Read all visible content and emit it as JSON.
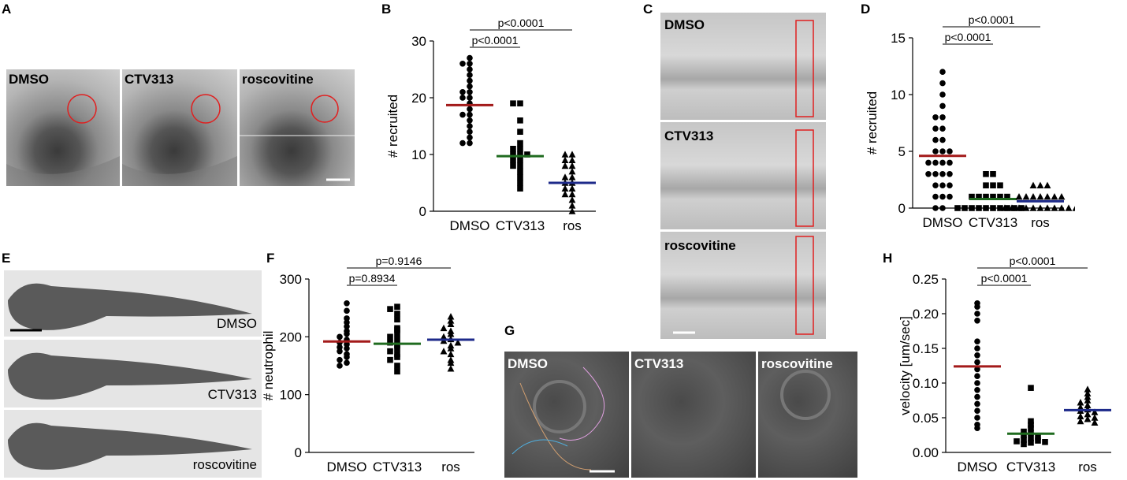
{
  "panels": {
    "a": "A",
    "b": "B",
    "c": "C",
    "d": "D",
    "e": "E",
    "f": "F",
    "g": "G",
    "h": "H"
  },
  "panel_a": {
    "labels": [
      "DMSO",
      "CTV313",
      "roscovitine"
    ]
  },
  "panel_c": {
    "labels": [
      "DMSO",
      "CTV313",
      "roscovitine"
    ]
  },
  "panel_e": {
    "labels": [
      "DMSO",
      "CTV313",
      "roscovitine"
    ]
  },
  "panel_g": {
    "labels": [
      "DMSO",
      "CTV313",
      "roscovitine"
    ]
  },
  "colors": {
    "dmso": "#a31a1a",
    "ctv313": "#1f6b1f",
    "ros": "#1d2a8a"
  },
  "chart_data": [
    {
      "id": "B",
      "type": "scatter",
      "categories": [
        "DMSO",
        "CTV313",
        "ros"
      ],
      "ylabel": "# recruited",
      "ylim": [
        0,
        30
      ],
      "yticks": [
        0,
        10,
        20,
        30
      ],
      "markers": [
        "circle",
        "square",
        "triangle"
      ],
      "means": [
        18.7,
        9.7,
        5.0
      ],
      "series": [
        {
          "values": [
            27,
            26,
            26,
            25,
            24,
            23,
            22,
            21,
            21,
            20,
            20,
            19,
            18,
            17,
            17,
            16,
            15,
            14,
            13,
            12,
            12
          ]
        },
        {
          "values": [
            19,
            19,
            16,
            14,
            12,
            11,
            11,
            10,
            10,
            10,
            9,
            9,
            8,
            8,
            7,
            6,
            5,
            4
          ]
        },
        {
          "values": [
            10,
            10,
            9,
            9,
            8,
            8,
            7,
            6,
            6,
            5,
            5,
            4,
            4,
            3,
            3,
            2,
            1,
            0
          ]
        }
      ],
      "comparisons": [
        {
          "groups": [
            0,
            1
          ],
          "label": "p<0.0001"
        },
        {
          "groups": [
            0,
            2
          ],
          "label": "p<0.0001"
        }
      ]
    },
    {
      "id": "D",
      "type": "scatter",
      "categories": [
        "DMSO",
        "CTV313",
        "ros"
      ],
      "ylabel": "# recruited",
      "ylim": [
        0,
        15
      ],
      "yticks": [
        0,
        5,
        10,
        15
      ],
      "markers": [
        "circle",
        "square",
        "triangle"
      ],
      "means": [
        4.6,
        0.8,
        0.6
      ],
      "series": [
        {
          "values": [
            12,
            11,
            10,
            9,
            8,
            8,
            7,
            7,
            6,
            6,
            5,
            5,
            5,
            4,
            4,
            4,
            4,
            3,
            3,
            3,
            3,
            2,
            2,
            2,
            1,
            1,
            1,
            0,
            0
          ]
        },
        {
          "values": [
            3,
            3,
            2,
            2,
            2,
            1,
            1,
            1,
            1,
            1,
            1,
            0,
            0,
            0,
            0,
            0,
            0,
            0,
            0,
            0,
            0
          ]
        },
        {
          "values": [
            2,
            2,
            2,
            1,
            1,
            1,
            1,
            1,
            1,
            1,
            0,
            0,
            0,
            0,
            0,
            0,
            0,
            0,
            0,
            0,
            0
          ]
        }
      ],
      "comparisons": [
        {
          "groups": [
            0,
            1
          ],
          "label": "p<0.0001"
        },
        {
          "groups": [
            0,
            2
          ],
          "label": "p<0.0001"
        }
      ]
    },
    {
      "id": "F",
      "type": "scatter",
      "categories": [
        "DMSO",
        "CTV313",
        "ros"
      ],
      "ylabel": "# neutrophil",
      "ylim": [
        0,
        300
      ],
      "yticks": [
        0,
        100,
        200,
        300
      ],
      "markers": [
        "circle",
        "square",
        "triangle"
      ],
      "means": [
        192,
        188,
        195
      ],
      "series": [
        {
          "values": [
            258,
            245,
            232,
            225,
            218,
            210,
            205,
            200,
            195,
            190,
            187,
            182,
            180,
            175,
            170,
            165,
            160,
            155,
            150
          ]
        },
        {
          "values": [
            252,
            248,
            240,
            230,
            215,
            212,
            205,
            200,
            195,
            190,
            185,
            180,
            175,
            170,
            165,
            160,
            150,
            140
          ]
        },
        {
          "values": [
            235,
            228,
            222,
            215,
            210,
            205,
            200,
            196,
            193,
            190,
            185,
            180,
            175,
            170,
            160,
            155,
            145
          ]
        }
      ],
      "comparisons": [
        {
          "groups": [
            0,
            1
          ],
          "label": "p=0.8934"
        },
        {
          "groups": [
            0,
            2
          ],
          "label": "p=0.9146"
        }
      ]
    },
    {
      "id": "H",
      "type": "scatter",
      "categories": [
        "DMSO",
        "CTV313",
        "ros"
      ],
      "ylabel": "velocity [um/sec]",
      "ylim": [
        0,
        0.25
      ],
      "yticks": [
        "0.00",
        "0.05",
        "0.10",
        "0.15",
        "0.20",
        "0.25"
      ],
      "markers": [
        "circle",
        "square",
        "triangle"
      ],
      "means": [
        0.124,
        0.027,
        0.061
      ],
      "series": [
        {
          "values": [
            0.215,
            0.21,
            0.2,
            0.19,
            0.16,
            0.15,
            0.14,
            0.13,
            0.12,
            0.11,
            0.1,
            0.09,
            0.08,
            0.07,
            0.06,
            0.05,
            0.04,
            0.035
          ]
        },
        {
          "values": [
            0.093,
            0.045,
            0.04,
            0.035,
            0.03,
            0.028,
            0.025,
            0.022,
            0.02,
            0.018,
            0.017,
            0.016,
            0.015,
            0.014,
            0.012
          ]
        },
        {
          "values": [
            0.091,
            0.085,
            0.08,
            0.075,
            0.072,
            0.068,
            0.065,
            0.062,
            0.06,
            0.058,
            0.055,
            0.052,
            0.05,
            0.048,
            0.045,
            0.043
          ]
        }
      ],
      "comparisons": [
        {
          "groups": [
            0,
            1
          ],
          "label": "p<0.0001"
        },
        {
          "groups": [
            0,
            2
          ],
          "label": "p<0.0001"
        }
      ]
    }
  ]
}
